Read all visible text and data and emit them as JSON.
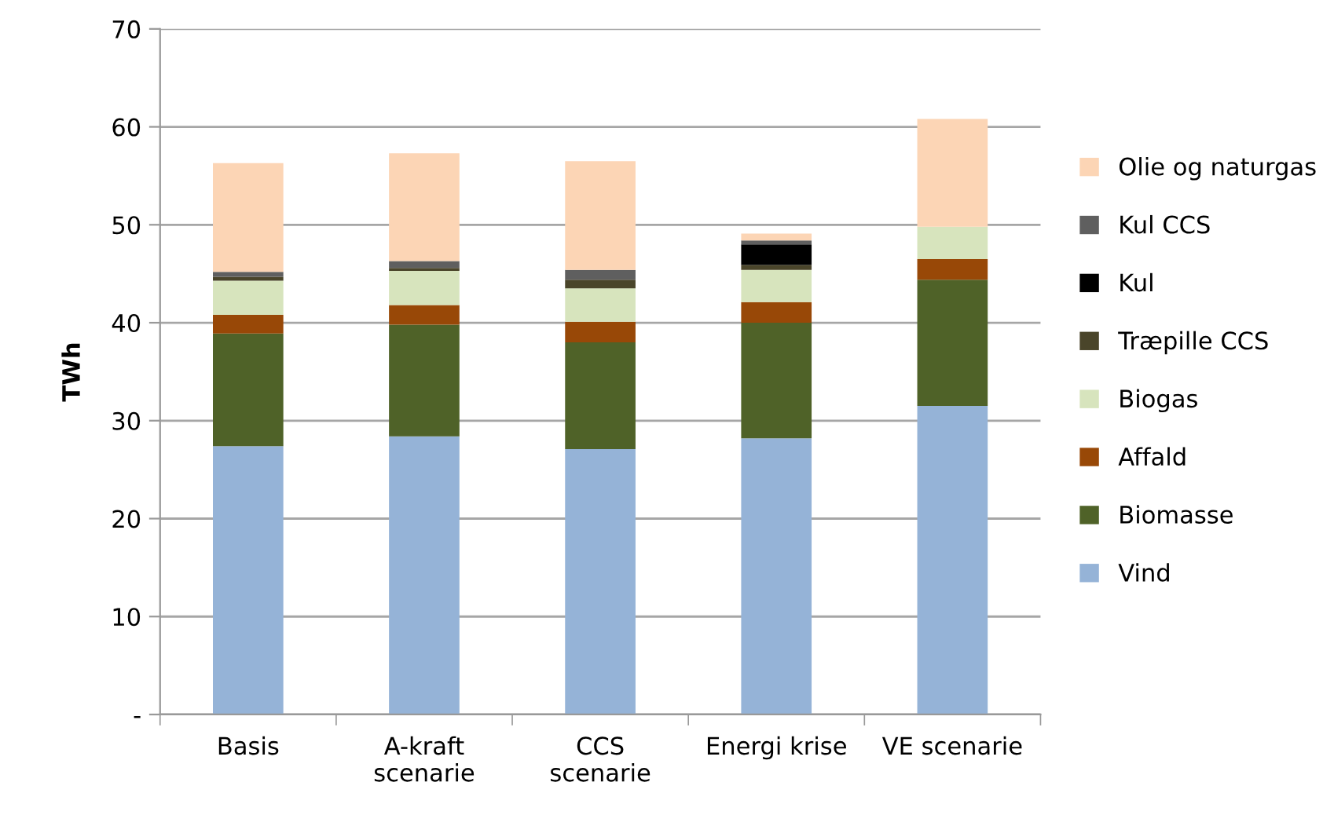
{
  "chart_data": {
    "type": "bar",
    "stacked": true,
    "ylabel": "TWh",
    "categories": [
      "Basis",
      "A-kraft\nscenarie",
      "CCS\nscenarie",
      "Energi krise",
      "VE scenarie"
    ],
    "series": [
      {
        "name": "Vind",
        "color": "#95b3d7",
        "values": [
          27.4,
          28.4,
          27.1,
          28.2,
          31.5
        ]
      },
      {
        "name": "Biomasse",
        "color": "#4f6228",
        "values": [
          11.5,
          11.4,
          10.9,
          11.8,
          12.9
        ]
      },
      {
        "name": "Affald",
        "color": "#984807",
        "values": [
          1.9,
          2.0,
          2.1,
          2.1,
          2.1
        ]
      },
      {
        "name": "Biogas",
        "color": "#d7e4bd",
        "values": [
          3.5,
          3.5,
          3.4,
          3.3,
          3.3
        ]
      },
      {
        "name": "Træpille CCS",
        "color": "#4a452a",
        "values": [
          0.4,
          0.3,
          0.9,
          0.5,
          0
        ]
      },
      {
        "name": "Kul",
        "color": "#000000",
        "values": [
          0,
          0,
          0,
          2.1,
          0
        ]
      },
      {
        "name": "Kul CCS",
        "color": "#5f5f5f",
        "values": [
          0.5,
          0.7,
          1.0,
          0.4,
          0
        ]
      },
      {
        "name": "Olie og naturgas",
        "color": "#fcd5b5",
        "values": [
          11.1,
          11.0,
          11.1,
          0.7,
          11.0
        ]
      }
    ],
    "ylim": [
      0,
      70
    ],
    "yticks": [
      {
        "value": 0,
        "label": "-"
      },
      10,
      20,
      30,
      40,
      50,
      60,
      70
    ],
    "grid": "y",
    "legend": "right"
  }
}
